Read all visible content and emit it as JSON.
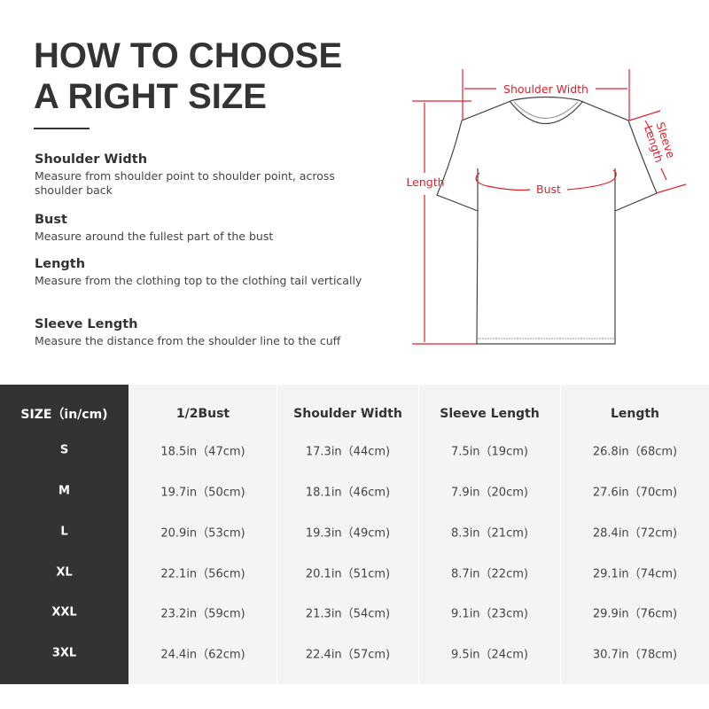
{
  "title": {
    "line1": "HOW TO CHOOSE",
    "line2": "A RIGHT SIZE"
  },
  "specs": [
    {
      "label": "Shoulder Width",
      "desc": "Measure from shoulder point to shoulder point, across shoulder back"
    },
    {
      "label": "Bust",
      "desc": "Measure around the fullest part of the bust"
    },
    {
      "label": "Length",
      "desc": "Measure from the clothing top to the clothing tail vertically"
    },
    {
      "label": "Sleeve Length",
      "desc": "Measure the distance from the shoulder line to the cuff"
    }
  ],
  "diagram": {
    "shoulder": "Shoulder Width",
    "bust": "Bust",
    "length": "Length",
    "sleeve1": "Sleeve",
    "sleeve2": "Length",
    "accent": "#e0202a"
  },
  "table": {
    "headers": [
      "SIZE（in/cm)",
      "1/2Bust",
      "Shoulder Width",
      "Sleeve Length",
      "Length"
    ],
    "rows": [
      [
        "S",
        "18.5in（47cm)",
        "17.3in（44cm)",
        "7.5in（19cm)",
        "26.8in（68cm)"
      ],
      [
        "M",
        "19.7in（50cm)",
        "18.1in（46cm)",
        "7.9in（20cm)",
        "27.6in（70cm)"
      ],
      [
        "L",
        "20.9in（53cm)",
        "19.3in（49cm)",
        "8.3in（21cm)",
        "28.4in（72cm)"
      ],
      [
        "XL",
        "22.1in（56cm)",
        "20.1in（51cm)",
        "8.7in（22cm)",
        "29.1in（74cm)"
      ],
      [
        "XXL",
        "23.2in（59cm)",
        "21.3in（54cm)",
        "9.1in（23cm)",
        "29.9in（76cm)"
      ],
      [
        "3XL",
        "24.4in（62cm)",
        "22.4in（57cm)",
        "9.5in（24cm)",
        "30.7in（78cm)"
      ]
    ]
  }
}
